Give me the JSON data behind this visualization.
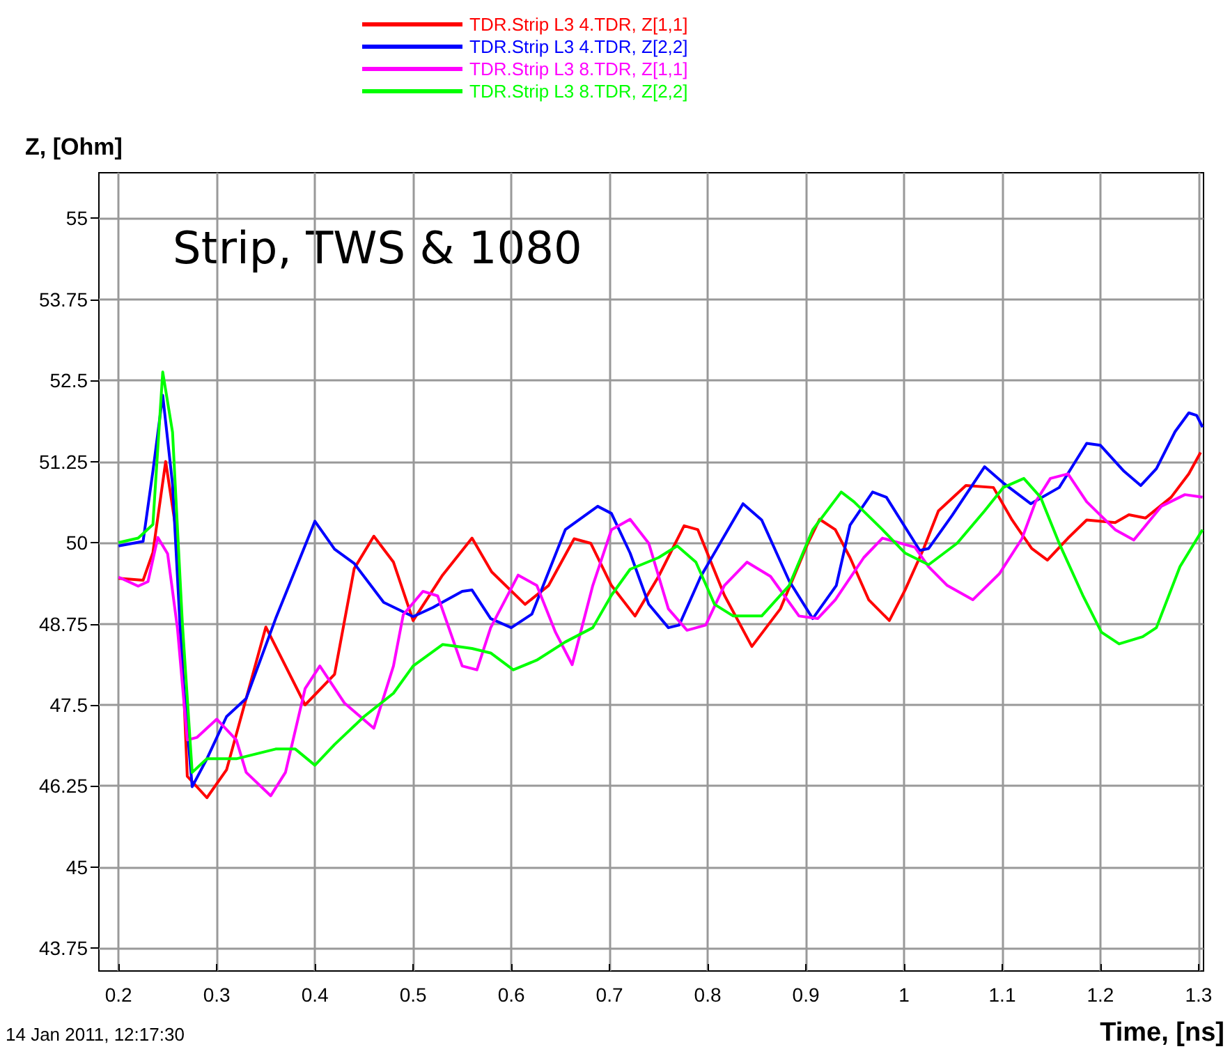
{
  "chart_data": {
    "type": "line",
    "title": "Strip, TWS & 1080",
    "xlabel": "Time, [ns]",
    "ylabel": "Z, [Ohm]",
    "annotations": [
      "14 Jan 2011, 12:17:30"
    ],
    "xlim": [
      0.18,
      1.305
    ],
    "xticks": [
      0.2,
      0.3,
      0.4,
      0.5,
      0.6,
      0.7,
      0.8,
      0.9,
      1,
      1.1,
      1.2,
      1.3
    ],
    "ylim": [
      43.4,
      55.7
    ],
    "yticks": [
      43.75,
      45,
      46.25,
      47.5,
      48.75,
      50,
      51.25,
      52.5,
      53.75,
      55
    ],
    "grid": true,
    "legend": "top",
    "marker": "none",
    "line_style": "solid",
    "series": [
      {
        "name": "TDR.Strip L3 4.TDR, Z[1,1]",
        "color": "#ff0000",
        "x": [
          0.2,
          0.225,
          0.235,
          0.248,
          0.26,
          0.27,
          0.29,
          0.31,
          0.35,
          0.39,
          0.42,
          0.44,
          0.46,
          0.48,
          0.5,
          0.53,
          0.56,
          0.58,
          0.614,
          0.638,
          0.664,
          0.681,
          0.702,
          0.726,
          0.75,
          0.776,
          0.79,
          0.817,
          0.845,
          0.874,
          0.902,
          0.914,
          0.93,
          0.945,
          0.964,
          0.985,
          1.001,
          1.02,
          1.035,
          1.063,
          1.091,
          1.11,
          1.13,
          1.146,
          1.167,
          1.186,
          1.215,
          1.229,
          1.246,
          1.272,
          1.29,
          1.302
        ],
        "values": [
          49.45,
          49.42,
          49.85,
          51.25,
          50.05,
          46.4,
          46.07,
          46.5,
          48.7,
          47.5,
          47.97,
          49.6,
          50.1,
          49.7,
          48.8,
          49.5,
          50.07,
          49.55,
          49.05,
          49.34,
          50.06,
          49.99,
          49.34,
          48.87,
          49.48,
          50.26,
          50.2,
          49.19,
          48.4,
          48.98,
          49.99,
          50.36,
          50.2,
          49.77,
          49.12,
          48.8,
          49.27,
          49.91,
          50.49,
          50.88,
          50.85,
          50.35,
          49.91,
          49.73,
          50.07,
          50.35,
          50.31,
          50.43,
          50.38,
          50.7,
          51.06,
          51.39
        ]
      },
      {
        "name": "TDR.Strip L3 4.TDR, Z[2,2]",
        "color": "#0000ff",
        "x": [
          0.2,
          0.225,
          0.235,
          0.245,
          0.255,
          0.265,
          0.275,
          0.29,
          0.31,
          0.33,
          0.36,
          0.4,
          0.42,
          0.44,
          0.47,
          0.5,
          0.52,
          0.55,
          0.56,
          0.579,
          0.6,
          0.621,
          0.655,
          0.688,
          0.702,
          0.721,
          0.74,
          0.76,
          0.771,
          0.793,
          0.836,
          0.855,
          0.883,
          0.907,
          0.931,
          0.945,
          0.968,
          0.982,
          1.016,
          1.025,
          1.049,
          1.082,
          1.101,
          1.129,
          1.158,
          1.186,
          1.2,
          1.224,
          1.241,
          1.257,
          1.276,
          1.29,
          1.298,
          1.304
        ],
        "values": [
          49.95,
          50.02,
          51.1,
          52.27,
          50.9,
          48.04,
          46.24,
          46.67,
          47.32,
          47.6,
          48.83,
          50.33,
          49.9,
          49.68,
          49.08,
          48.86,
          49.0,
          49.25,
          49.27,
          48.83,
          48.69,
          48.9,
          50.2,
          50.56,
          50.45,
          49.84,
          49.05,
          48.69,
          48.73,
          49.48,
          50.6,
          50.35,
          49.41,
          48.83,
          49.34,
          50.27,
          50.78,
          50.7,
          49.88,
          49.91,
          50.42,
          51.17,
          50.92,
          50.6,
          50.85,
          51.53,
          51.5,
          51.1,
          50.88,
          51.14,
          51.71,
          52.0,
          51.96,
          51.78
        ]
      },
      {
        "name": "TDR.Strip L3 8.TDR, Z[1,1]",
        "color": "#ff00ff",
        "x": [
          0.2,
          0.22,
          0.23,
          0.24,
          0.25,
          0.26,
          0.27,
          0.28,
          0.3,
          0.32,
          0.33,
          0.355,
          0.37,
          0.39,
          0.405,
          0.43,
          0.46,
          0.48,
          0.49,
          0.51,
          0.525,
          0.55,
          0.565,
          0.579,
          0.607,
          0.626,
          0.645,
          0.662,
          0.683,
          0.702,
          0.721,
          0.74,
          0.76,
          0.779,
          0.798,
          0.817,
          0.84,
          0.864,
          0.893,
          0.912,
          0.93,
          0.959,
          0.978,
          1.011,
          1.025,
          1.044,
          1.07,
          1.097,
          1.12,
          1.134,
          1.149,
          1.167,
          1.186,
          1.215,
          1.234,
          1.262,
          1.286,
          1.304
        ],
        "values": [
          49.47,
          49.33,
          49.4,
          50.08,
          49.83,
          48.68,
          46.96,
          47.0,
          47.28,
          46.96,
          46.46,
          46.1,
          46.46,
          47.75,
          48.1,
          47.53,
          47.14,
          48.1,
          48.89,
          49.25,
          49.18,
          48.1,
          48.04,
          48.69,
          49.5,
          49.34,
          48.62,
          48.12,
          49.34,
          50.2,
          50.36,
          49.99,
          48.98,
          48.65,
          48.73,
          49.34,
          49.7,
          49.48,
          48.87,
          48.83,
          49.12,
          49.77,
          50.07,
          49.93,
          49.63,
          49.34,
          49.12,
          49.52,
          50.06,
          50.63,
          50.99,
          51.06,
          50.63,
          50.2,
          50.04,
          50.56,
          50.74,
          50.7
        ]
      },
      {
        "name": "TDR.Strip L3 8.TDR, Z[2,2]",
        "color": "#00ff00",
        "x": [
          0.2,
          0.22,
          0.235,
          0.245,
          0.255,
          0.265,
          0.275,
          0.29,
          0.32,
          0.36,
          0.38,
          0.4,
          0.42,
          0.45,
          0.48,
          0.5,
          0.53,
          0.55,
          0.56,
          0.579,
          0.602,
          0.626,
          0.655,
          0.683,
          0.702,
          0.721,
          0.75,
          0.769,
          0.788,
          0.807,
          0.826,
          0.855,
          0.883,
          0.907,
          0.936,
          0.949,
          0.978,
          1.001,
          1.025,
          1.054,
          1.082,
          1.101,
          1.122,
          1.139,
          1.158,
          1.182,
          1.201,
          1.219,
          1.243,
          1.257,
          1.281,
          1.304
        ],
        "values": [
          50.0,
          50.07,
          50.28,
          52.63,
          51.7,
          48.76,
          46.46,
          46.67,
          46.67,
          46.82,
          46.82,
          46.57,
          46.89,
          47.32,
          47.68,
          48.1,
          48.43,
          48.39,
          48.37,
          48.3,
          48.04,
          48.19,
          48.47,
          48.69,
          49.19,
          49.59,
          49.77,
          49.95,
          49.7,
          49.05,
          48.87,
          48.87,
          49.34,
          50.2,
          50.78,
          50.63,
          50.2,
          49.84,
          49.66,
          49.99,
          50.49,
          50.85,
          50.99,
          50.7,
          49.99,
          49.19,
          48.62,
          48.44,
          48.55,
          48.69,
          49.63,
          50.2
        ]
      }
    ]
  }
}
